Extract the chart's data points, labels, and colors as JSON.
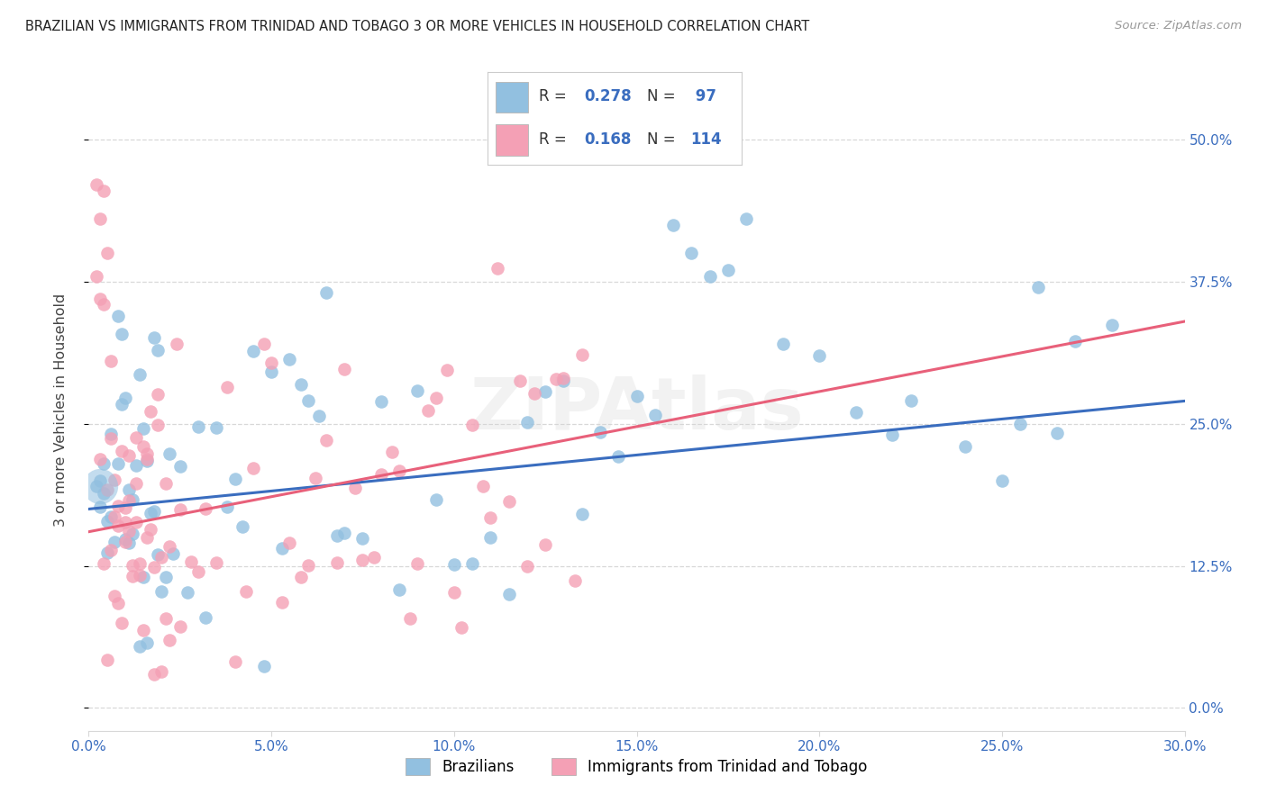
{
  "title": "BRAZILIAN VS IMMIGRANTS FROM TRINIDAD AND TOBAGO 3 OR MORE VEHICLES IN HOUSEHOLD CORRELATION CHART",
  "source": "Source: ZipAtlas.com",
  "xlim": [
    0.0,
    0.3
  ],
  "ylim": [
    -0.02,
    0.545
  ],
  "R1": 0.278,
  "N1": 97,
  "R2": 0.168,
  "N2": 114,
  "color_blue": "#92c0e0",
  "color_pink": "#f4a0b5",
  "line_color_blue": "#3a6dbf",
  "line_color_pink": "#e8607a",
  "ylabel": "3 or more Vehicles in Household",
  "legend_label1": "Brazilians",
  "legend_label2": "Immigrants from Trinidad and Tobago",
  "watermark": "ZIPAtlas",
  "tick_color": "#3a6dbf",
  "grid_color": "#d8d8d8",
  "title_color": "#222222",
  "source_color": "#999999",
  "line1_x0": 0.0,
  "line1_y0": 0.175,
  "line1_x1": 0.3,
  "line1_y1": 0.27,
  "line2_x0": 0.0,
  "line2_y0": 0.155,
  "line2_x1": 0.3,
  "line2_y1": 0.34
}
